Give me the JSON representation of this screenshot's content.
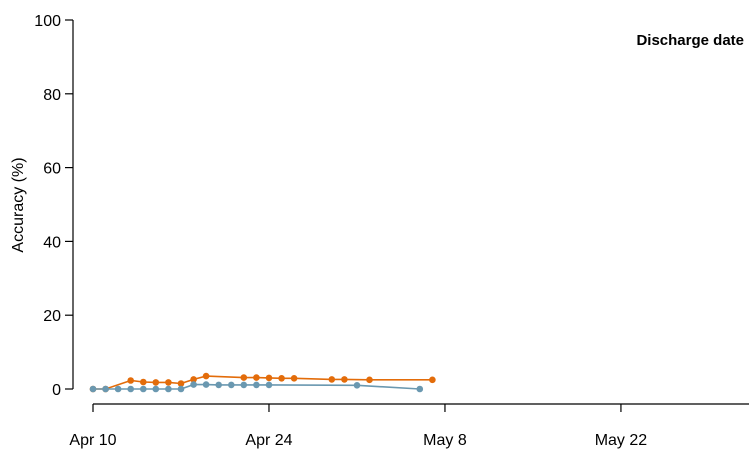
{
  "chart_data": {
    "type": "line",
    "title": "Discharge date",
    "xlabel": "",
    "ylabel": "Accuracy (%)",
    "x_type": "date",
    "xlim": [
      "2020-04-10",
      "2020-06-01"
    ],
    "ylim": [
      0,
      100
    ],
    "x_ticks": [
      {
        "date": "2020-04-10",
        "label": "Apr 10"
      },
      {
        "date": "2020-04-24",
        "label": "Apr 24"
      },
      {
        "date": "2020-05-08",
        "label": "May 8"
      },
      {
        "date": "2020-05-22",
        "label": "May 22"
      }
    ],
    "y_ticks": [
      0,
      20,
      40,
      60,
      80,
      100
    ],
    "grid": false,
    "series": [
      {
        "color": "#E36C0A",
        "points": [
          {
            "x": "2020-04-10",
            "y": 0
          },
          {
            "x": "2020-04-11",
            "y": 0
          },
          {
            "x": "2020-04-13",
            "y": 2.3
          },
          {
            "x": "2020-04-14",
            "y": 1.9
          },
          {
            "x": "2020-04-15",
            "y": 1.8
          },
          {
            "x": "2020-04-16",
            "y": 1.8
          },
          {
            "x": "2020-04-17",
            "y": 1.5
          },
          {
            "x": "2020-04-18",
            "y": 2.6
          },
          {
            "x": "2020-04-19",
            "y": 3.5
          },
          {
            "x": "2020-04-22",
            "y": 3.1
          },
          {
            "x": "2020-04-23",
            "y": 3.1
          },
          {
            "x": "2020-04-24",
            "y": 3.0
          },
          {
            "x": "2020-04-25",
            "y": 2.9
          },
          {
            "x": "2020-04-26",
            "y": 2.9
          },
          {
            "x": "2020-04-29",
            "y": 2.6
          },
          {
            "x": "2020-04-30",
            "y": 2.6
          },
          {
            "x": "2020-05-02",
            "y": 2.5
          },
          {
            "x": "2020-05-07",
            "y": 2.5
          }
        ]
      },
      {
        "color": "#6A98B0",
        "points": [
          {
            "x": "2020-04-10",
            "y": 0
          },
          {
            "x": "2020-04-11",
            "y": 0
          },
          {
            "x": "2020-04-12",
            "y": 0
          },
          {
            "x": "2020-04-13",
            "y": 0
          },
          {
            "x": "2020-04-14",
            "y": 0
          },
          {
            "x": "2020-04-15",
            "y": 0
          },
          {
            "x": "2020-04-16",
            "y": 0
          },
          {
            "x": "2020-04-17",
            "y": 0
          },
          {
            "x": "2020-04-18",
            "y": 1.2
          },
          {
            "x": "2020-04-19",
            "y": 1.2
          },
          {
            "x": "2020-04-20",
            "y": 1.1
          },
          {
            "x": "2020-04-21",
            "y": 1.1
          },
          {
            "x": "2020-04-22",
            "y": 1.1
          },
          {
            "x": "2020-04-23",
            "y": 1.1
          },
          {
            "x": "2020-04-24",
            "y": 1.1
          },
          {
            "x": "2020-05-01",
            "y": 1.0
          },
          {
            "x": "2020-05-06",
            "y": 0
          }
        ]
      }
    ]
  }
}
